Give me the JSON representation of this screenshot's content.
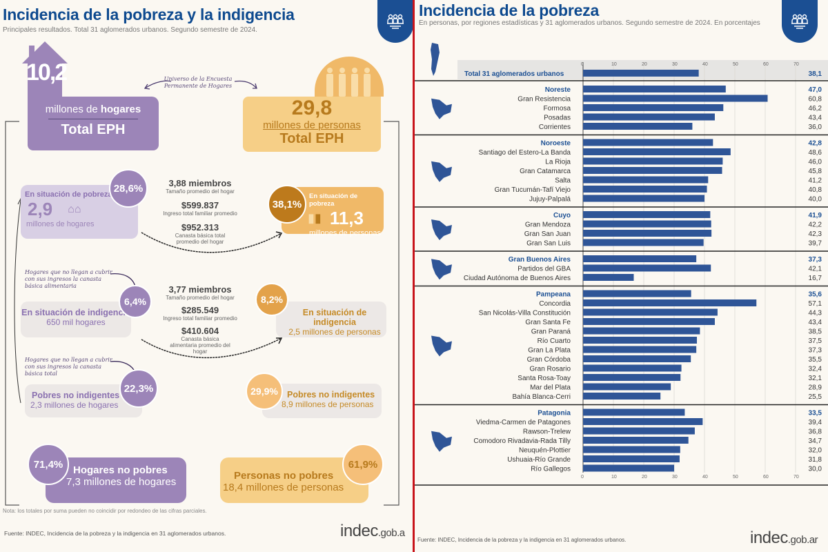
{
  "left": {
    "title": "Incidencia de la pobreza y la indigencia",
    "subtitle": "Principales resultados. Total 31 aglomerados urbanos. Segundo semestre de 2024.",
    "badge_icon": "people-group-icon",
    "universe_note": "Universo de la Encuesta Permanente de Hogares",
    "hogares_total": {
      "value": "10,2",
      "unit_pre": "millones de ",
      "unit_bold": "hogares",
      "label": "Total EPH"
    },
    "personas_total": {
      "value": "29,8",
      "unit_pre": "millones de ",
      "unit_bold": "personas",
      "label": "Total EPH"
    },
    "pobreza_hogares": {
      "label": "En situación de pobreza",
      "pct": "28,6%",
      "value": "2,9",
      "unit": "millones de hogares"
    },
    "pobreza_personas": {
      "label": "En situación de pobreza",
      "pct": "38,1%",
      "value": "11,3",
      "unit": "millones de personas"
    },
    "pobreza_stats": [
      {
        "value": "3,88 miembros",
        "label": "Tamaño promedio del hogar"
      },
      {
        "value": "$599.837",
        "label": "Ingreso total familiar promedio"
      },
      {
        "value": "$952.313",
        "label": "Canasta básica total promedio del hogar"
      }
    ],
    "indigencia_note": "Hogares que no llegan a cubrir con sus ingresos la canasta básica alimentaria",
    "indigencia_hogares": {
      "label": "En situación de indigencia",
      "pct": "6,4%",
      "unit": "650 mil hogares"
    },
    "indigencia_personas": {
      "label": "En situación de indigencia",
      "pct": "8,2%",
      "unit": "2,5 millones de personas"
    },
    "indigencia_stats": [
      {
        "value": "3,77 miembros",
        "label": "Tamaño promedio del hogar"
      },
      {
        "value": "$285.549",
        "label": "Ingreso total familiar promedio"
      },
      {
        "value": "$410.604",
        "label": "Canasta básica alimentaria promedio del hogar"
      }
    ],
    "pobres_no_indig_note": "Hogares que no llegan a cubrir con sus ingresos la canasta básica total",
    "pobres_no_indig_hogares": {
      "label": "Pobres no indigentes",
      "pct": "22,3%",
      "unit": "2,3 millones de hogares"
    },
    "pobres_no_indig_personas": {
      "label": "Pobres no indigentes",
      "pct": "29,9%",
      "unit": "8,9 millones de personas"
    },
    "no_pobres_hogares": {
      "label": "Hogares no pobres",
      "pct": "71,4%",
      "unit": "7,3 millones de hogares"
    },
    "no_pobres_personas": {
      "label": "Personas no pobres",
      "pct": "61,9%",
      "unit": "18,4 millones de personas"
    },
    "nota": "Nota: los totales por suma pueden no coincidir por redondeo de las cifras parciales.",
    "fuente": "Fuente: INDEC, Incidencia de la pobreza y la indigencia en 31 aglomerados urbanos.",
    "logo_main": "indec",
    "logo_suffix": ".gob.a"
  },
  "right": {
    "title": "Incidencia de la pobreza",
    "subtitle": "En personas, por regiones estadísticas y 31 aglomerados urbanos. Segundo semestre de 2024. En porcentajes",
    "badge_icon": "people-group-icon",
    "fuente": "Fuente: INDEC, Incidencia de la pobreza y la indigencia en 31 aglomerados urbanos.",
    "logo_main": "indec",
    "logo_suffix": ".gob.ar"
  },
  "colors": {
    "bar": "#2f5597",
    "region_text": "#1b4f93",
    "purple": "#9c85b8",
    "orange": "#f6cf87",
    "divider": "#c8141b"
  },
  "chart_data": {
    "type": "bar",
    "orientation": "horizontal",
    "title": "Incidencia de la pobreza",
    "xlabel": "",
    "ylabel": "",
    "xlim": [
      0,
      70
    ],
    "xticks": [
      0,
      10,
      20,
      30,
      40,
      50,
      60,
      70
    ],
    "grid": true,
    "total": {
      "name": "Total 31 aglomerados urbanos",
      "value": 38.1,
      "label": "38,1"
    },
    "groups": [
      {
        "region": "Noreste",
        "value": 47.0,
        "label": "47,0",
        "map_icon": "noreste-map-icon",
        "items": [
          {
            "name": "Gran Resistencia",
            "value": 60.8,
            "label": "60,8"
          },
          {
            "name": "Formosa",
            "value": 46.2,
            "label": "46,2"
          },
          {
            "name": "Posadas",
            "value": 43.4,
            "label": "43,4"
          },
          {
            "name": "Corrientes",
            "value": 36.0,
            "label": "36,0"
          }
        ]
      },
      {
        "region": "Noroeste",
        "value": 42.8,
        "label": "42,8",
        "map_icon": "noroeste-map-icon",
        "items": [
          {
            "name": "Santiago del Estero-La Banda",
            "value": 48.6,
            "label": "48,6"
          },
          {
            "name": "La Rioja",
            "value": 46.0,
            "label": "46,0"
          },
          {
            "name": "Gran Catamarca",
            "value": 45.8,
            "label": "45,8"
          },
          {
            "name": "Salta",
            "value": 41.2,
            "label": "41,2"
          },
          {
            "name": "Gran Tucumán-Tafí Viejo",
            "value": 40.8,
            "label": "40,8"
          },
          {
            "name": "Jujuy-Palpalá",
            "value": 40.0,
            "label": "40,0"
          }
        ]
      },
      {
        "region": "Cuyo",
        "value": 41.9,
        "label": "41,9",
        "map_icon": "cuyo-map-icon",
        "items": [
          {
            "name": "Gran Mendoza",
            "value": 42.2,
            "label": "42,2"
          },
          {
            "name": "Gran San Juan",
            "value": 42.3,
            "label": "42,3"
          },
          {
            "name": "Gran San Luis",
            "value": 39.7,
            "label": "39,7"
          }
        ]
      },
      {
        "region": "Gran Buenos Aires",
        "value": 37.3,
        "label": "37,3",
        "map_icon": "gba-map-icon",
        "items": [
          {
            "name": "Partidos del GBA",
            "value": 42.1,
            "label": "42,1"
          },
          {
            "name": "Ciudad Autónoma de Buenos Aires",
            "value": 16.7,
            "label": "16,7"
          }
        ]
      },
      {
        "region": "Pampeana",
        "value": 35.6,
        "label": "35,6",
        "map_icon": "pampeana-map-icon",
        "items": [
          {
            "name": "Concordia",
            "value": 57.1,
            "label": "57,1"
          },
          {
            "name": "San Nicolás-Villa Constitución",
            "value": 44.3,
            "label": "44,3"
          },
          {
            "name": "Gran Santa Fe",
            "value": 43.4,
            "label": "43,4"
          },
          {
            "name": "Gran Paraná",
            "value": 38.5,
            "label": "38,5"
          },
          {
            "name": "Río Cuarto",
            "value": 37.5,
            "label": "37,5"
          },
          {
            "name": "Gran La Plata",
            "value": 37.3,
            "label": "37,3"
          },
          {
            "name": "Gran Córdoba",
            "value": 35.5,
            "label": "35,5"
          },
          {
            "name": "Gran Rosario",
            "value": 32.4,
            "label": "32,4"
          },
          {
            "name": "Santa Rosa-Toay",
            "value": 32.1,
            "label": "32,1"
          },
          {
            "name": "Mar del Plata",
            "value": 28.9,
            "label": "28,9"
          },
          {
            "name": "Bahía Blanca-Cerri",
            "value": 25.5,
            "label": "25,5"
          }
        ]
      },
      {
        "region": "Patagonia",
        "value": 33.5,
        "label": "33,5",
        "map_icon": "patagonia-map-icon",
        "items": [
          {
            "name": "Viedma-Carmen de Patagones",
            "value": 39.4,
            "label": "39,4"
          },
          {
            "name": "Rawson-Trelew",
            "value": 36.8,
            "label": "36,8"
          },
          {
            "name": "Comodoro Rivadavia-Rada Tilly",
            "value": 34.7,
            "label": "34,7"
          },
          {
            "name": "Neuquén-Plottier",
            "value": 32.0,
            "label": "32,0"
          },
          {
            "name": "Ushuaia-Río Grande",
            "value": 31.8,
            "label": "31,8"
          },
          {
            "name": "Río Gallegos",
            "value": 30.0,
            "label": "30,0"
          }
        ]
      }
    ]
  }
}
